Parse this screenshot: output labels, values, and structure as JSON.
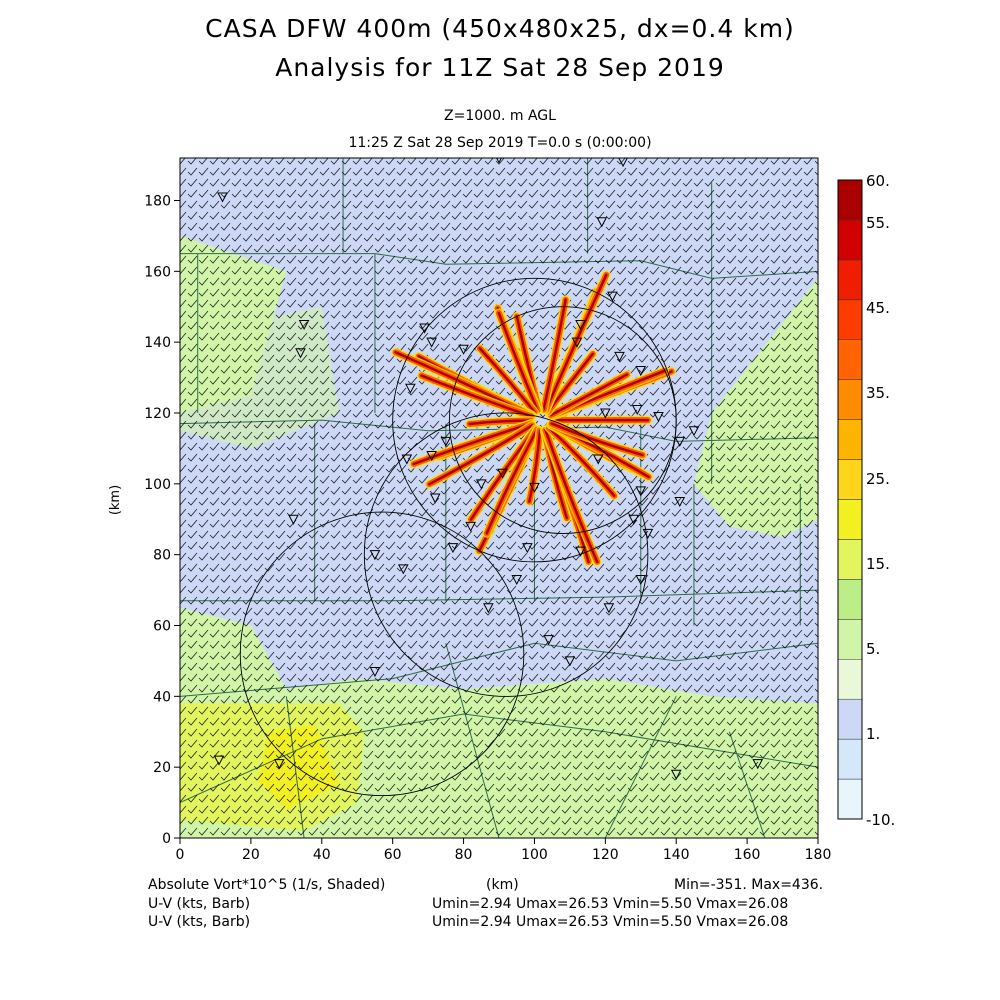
{
  "header": {
    "title_line1": "CASA DFW 400m (450x480x25, dx=0.4 km)",
    "title_line2": "Analysis for 11Z Sat 28 Sep 2019",
    "level": "Z=1000. m AGL",
    "time": "11:25 Z Sat 28 Sep 2019    T=0.0 s (0:00:00)"
  },
  "footer": {
    "field_label": "Absolute Vort*10^5 (1/s, Shaded)",
    "xunit": "(km)",
    "minmax": "Min=-351. Max=436.",
    "wind1_label": "U-V (kts, Barb)",
    "wind1_stats": "Umin=2.94 Umax=26.53  Vmin=5.50  Vmax=26.08",
    "wind2_label": "U-V (kts, Barb)",
    "wind2_stats": "Umin=2.94 Umax=26.53  Vmin=5.50  Vmax=26.08"
  },
  "chart_data": {
    "type": "heatmap",
    "x_range": [
      0,
      180
    ],
    "y_range": [
      0,
      192
    ],
    "ylabel": "(km)",
    "xlabel": "(km)",
    "x_ticks": [
      0,
      20,
      40,
      60,
      80,
      100,
      120,
      140,
      160,
      180
    ],
    "y_ticks": [
      0,
      20,
      40,
      60,
      80,
      100,
      120,
      140,
      160,
      180
    ],
    "colorbar": {
      "labels": [
        {
          "value": "60.",
          "at": 60
        },
        {
          "value": "55.",
          "at": 55
        },
        {
          "value": "45.",
          "at": 45
        },
        {
          "value": "35.",
          "at": 35
        },
        {
          "value": "25.",
          "at": 25
        },
        {
          "value": "15.",
          "at": 15
        },
        {
          "value": "5.",
          "at": 5
        },
        {
          "value": "1.",
          "at": 1
        },
        {
          "value": "-10.",
          "at": -10
        }
      ],
      "colors": [
        "#e8f6fc",
        "#d4e8fa",
        "#ccd8f6",
        "#e8f8d8",
        "#d0f5a8",
        "#bcee88",
        "#e2f55c",
        "#f2f020",
        "#ffd51c",
        "#ffb400",
        "#ff8c00",
        "#ff6400",
        "#ff3c00",
        "#f01e00",
        "#d20000",
        "#aa0000"
      ]
    },
    "field_regions": [
      {
        "name": "upper-blue",
        "value": 1,
        "color": "#ccd8f6"
      },
      {
        "name": "middle-green",
        "value": 5,
        "color": "#d0f5a8"
      },
      {
        "name": "bottom-yellow",
        "value": 15,
        "color": "#e2f55c"
      }
    ],
    "range_rings": [
      {
        "cx": 100,
        "cy": 118,
        "r": 40
      },
      {
        "cx": 92,
        "cy": 80,
        "r": 40
      },
      {
        "cx": 57,
        "cy": 52,
        "r": 40
      },
      {
        "cx": 108,
        "cy": 118,
        "r": 32
      }
    ],
    "radar_center_km": [
      102,
      118
    ],
    "radar_markers_km": [
      [
        90,
        192
      ],
      [
        125,
        191
      ],
      [
        12,
        181
      ],
      [
        119,
        174
      ],
      [
        122,
        153
      ],
      [
        113,
        145
      ],
      [
        69,
        144
      ],
      [
        35,
        145
      ],
      [
        34,
        137
      ],
      [
        71,
        140
      ],
      [
        112,
        140
      ],
      [
        124,
        136
      ],
      [
        130,
        132
      ],
      [
        80,
        138
      ],
      [
        65,
        127
      ],
      [
        120,
        120
      ],
      [
        129,
        121
      ],
      [
        135,
        119
      ],
      [
        141,
        112
      ],
      [
        145,
        115
      ],
      [
        75,
        112
      ],
      [
        71,
        108
      ],
      [
        64,
        107
      ],
      [
        91,
        103
      ],
      [
        72,
        96
      ],
      [
        85,
        100
      ],
      [
        100,
        99
      ],
      [
        130,
        98
      ],
      [
        141,
        95
      ],
      [
        32,
        90
      ],
      [
        55,
        80
      ],
      [
        82,
        88
      ],
      [
        128,
        90
      ],
      [
        63,
        76
      ],
      [
        77,
        82
      ],
      [
        98,
        82
      ],
      [
        113,
        81
      ],
      [
        130,
        73
      ],
      [
        95,
        73
      ],
      [
        87,
        65
      ],
      [
        121,
        65
      ],
      [
        104,
        56
      ],
      [
        110,
        50
      ],
      [
        55,
        47
      ],
      [
        11,
        22
      ],
      [
        28,
        21
      ],
      [
        140,
        18
      ],
      [
        163,
        21
      ],
      [
        132,
        86
      ],
      [
        118,
        107
      ]
    ],
    "vortex_streaks": 30
  }
}
